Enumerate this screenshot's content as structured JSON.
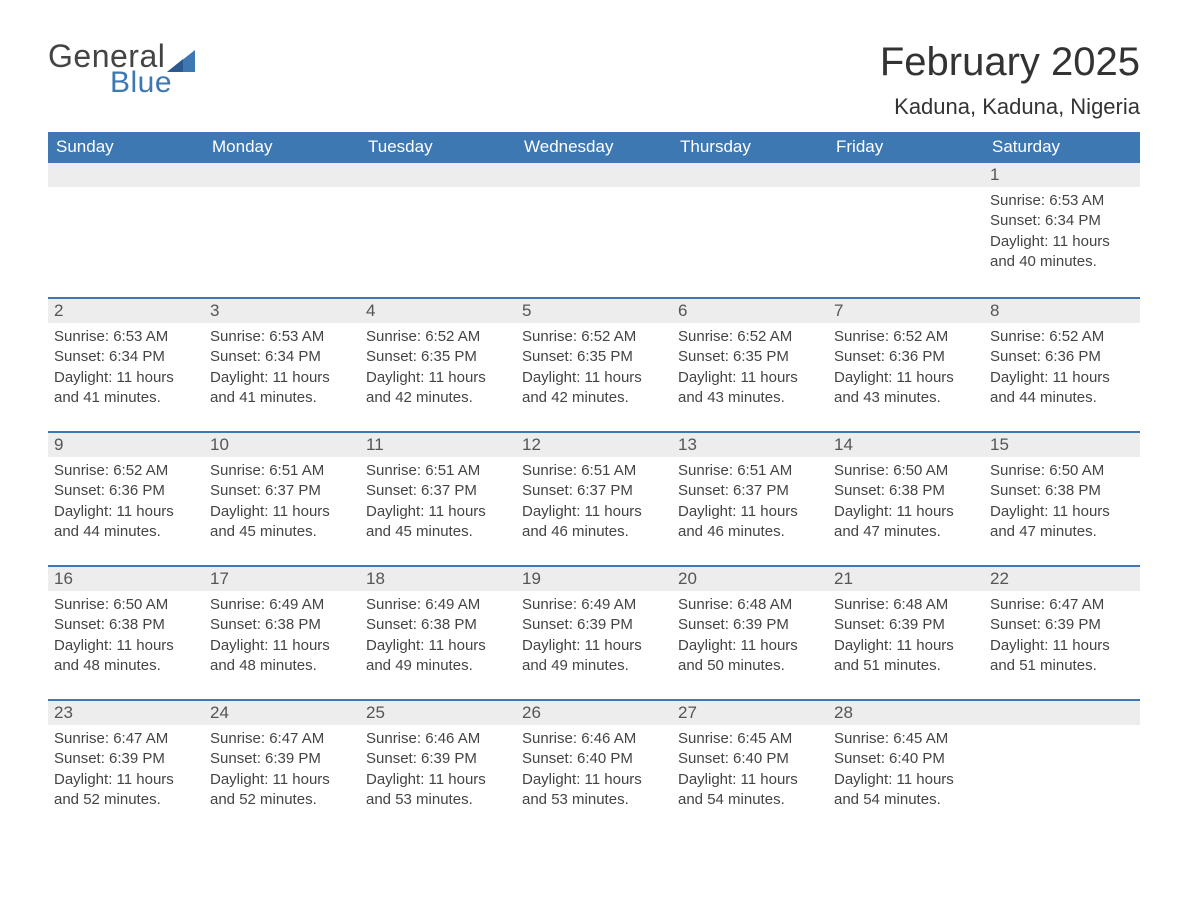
{
  "brand": {
    "word1": "General",
    "word2": "Blue",
    "icon_color": "#3e78b3"
  },
  "title": {
    "month_year": "February 2025",
    "location": "Kaduna, Kaduna, Nigeria"
  },
  "styling": {
    "header_bg": "#3e78b3",
    "header_fg": "#ffffff",
    "row_band_bg": "#ededed",
    "row_border_color": "#3e78b3",
    "page_bg": "#ffffff",
    "month_title_fontsize": 40,
    "location_fontsize": 22,
    "weekday_fontsize": 17,
    "daynum_fontsize": 17,
    "body_fontsize": 15
  },
  "weekdays": [
    "Sunday",
    "Monday",
    "Tuesday",
    "Wednesday",
    "Thursday",
    "Friday",
    "Saturday"
  ],
  "weeks": [
    [
      {
        "blank": true
      },
      {
        "blank": true
      },
      {
        "blank": true
      },
      {
        "blank": true
      },
      {
        "blank": true
      },
      {
        "blank": true
      },
      {
        "day": "1",
        "sunrise": "Sunrise: 6:53 AM",
        "sunset": "Sunset: 6:34 PM",
        "daylight": "Daylight: 11 hours and 40 minutes."
      }
    ],
    [
      {
        "day": "2",
        "sunrise": "Sunrise: 6:53 AM",
        "sunset": "Sunset: 6:34 PM",
        "daylight": "Daylight: 11 hours and 41 minutes."
      },
      {
        "day": "3",
        "sunrise": "Sunrise: 6:53 AM",
        "sunset": "Sunset: 6:34 PM",
        "daylight": "Daylight: 11 hours and 41 minutes."
      },
      {
        "day": "4",
        "sunrise": "Sunrise: 6:52 AM",
        "sunset": "Sunset: 6:35 PM",
        "daylight": "Daylight: 11 hours and 42 minutes."
      },
      {
        "day": "5",
        "sunrise": "Sunrise: 6:52 AM",
        "sunset": "Sunset: 6:35 PM",
        "daylight": "Daylight: 11 hours and 42 minutes."
      },
      {
        "day": "6",
        "sunrise": "Sunrise: 6:52 AM",
        "sunset": "Sunset: 6:35 PM",
        "daylight": "Daylight: 11 hours and 43 minutes."
      },
      {
        "day": "7",
        "sunrise": "Sunrise: 6:52 AM",
        "sunset": "Sunset: 6:36 PM",
        "daylight": "Daylight: 11 hours and 43 minutes."
      },
      {
        "day": "8",
        "sunrise": "Sunrise: 6:52 AM",
        "sunset": "Sunset: 6:36 PM",
        "daylight": "Daylight: 11 hours and 44 minutes."
      }
    ],
    [
      {
        "day": "9",
        "sunrise": "Sunrise: 6:52 AM",
        "sunset": "Sunset: 6:36 PM",
        "daylight": "Daylight: 11 hours and 44 minutes."
      },
      {
        "day": "10",
        "sunrise": "Sunrise: 6:51 AM",
        "sunset": "Sunset: 6:37 PM",
        "daylight": "Daylight: 11 hours and 45 minutes."
      },
      {
        "day": "11",
        "sunrise": "Sunrise: 6:51 AM",
        "sunset": "Sunset: 6:37 PM",
        "daylight": "Daylight: 11 hours and 45 minutes."
      },
      {
        "day": "12",
        "sunrise": "Sunrise: 6:51 AM",
        "sunset": "Sunset: 6:37 PM",
        "daylight": "Daylight: 11 hours and 46 minutes."
      },
      {
        "day": "13",
        "sunrise": "Sunrise: 6:51 AM",
        "sunset": "Sunset: 6:37 PM",
        "daylight": "Daylight: 11 hours and 46 minutes."
      },
      {
        "day": "14",
        "sunrise": "Sunrise: 6:50 AM",
        "sunset": "Sunset: 6:38 PM",
        "daylight": "Daylight: 11 hours and 47 minutes."
      },
      {
        "day": "15",
        "sunrise": "Sunrise: 6:50 AM",
        "sunset": "Sunset: 6:38 PM",
        "daylight": "Daylight: 11 hours and 47 minutes."
      }
    ],
    [
      {
        "day": "16",
        "sunrise": "Sunrise: 6:50 AM",
        "sunset": "Sunset: 6:38 PM",
        "daylight": "Daylight: 11 hours and 48 minutes."
      },
      {
        "day": "17",
        "sunrise": "Sunrise: 6:49 AM",
        "sunset": "Sunset: 6:38 PM",
        "daylight": "Daylight: 11 hours and 48 minutes."
      },
      {
        "day": "18",
        "sunrise": "Sunrise: 6:49 AM",
        "sunset": "Sunset: 6:38 PM",
        "daylight": "Daylight: 11 hours and 49 minutes."
      },
      {
        "day": "19",
        "sunrise": "Sunrise: 6:49 AM",
        "sunset": "Sunset: 6:39 PM",
        "daylight": "Daylight: 11 hours and 49 minutes."
      },
      {
        "day": "20",
        "sunrise": "Sunrise: 6:48 AM",
        "sunset": "Sunset: 6:39 PM",
        "daylight": "Daylight: 11 hours and 50 minutes."
      },
      {
        "day": "21",
        "sunrise": "Sunrise: 6:48 AM",
        "sunset": "Sunset: 6:39 PM",
        "daylight": "Daylight: 11 hours and 51 minutes."
      },
      {
        "day": "22",
        "sunrise": "Sunrise: 6:47 AM",
        "sunset": "Sunset: 6:39 PM",
        "daylight": "Daylight: 11 hours and 51 minutes."
      }
    ],
    [
      {
        "day": "23",
        "sunrise": "Sunrise: 6:47 AM",
        "sunset": "Sunset: 6:39 PM",
        "daylight": "Daylight: 11 hours and 52 minutes."
      },
      {
        "day": "24",
        "sunrise": "Sunrise: 6:47 AM",
        "sunset": "Sunset: 6:39 PM",
        "daylight": "Daylight: 11 hours and 52 minutes."
      },
      {
        "day": "25",
        "sunrise": "Sunrise: 6:46 AM",
        "sunset": "Sunset: 6:39 PM",
        "daylight": "Daylight: 11 hours and 53 minutes."
      },
      {
        "day": "26",
        "sunrise": "Sunrise: 6:46 AM",
        "sunset": "Sunset: 6:40 PM",
        "daylight": "Daylight: 11 hours and 53 minutes."
      },
      {
        "day": "27",
        "sunrise": "Sunrise: 6:45 AM",
        "sunset": "Sunset: 6:40 PM",
        "daylight": "Daylight: 11 hours and 54 minutes."
      },
      {
        "day": "28",
        "sunrise": "Sunrise: 6:45 AM",
        "sunset": "Sunset: 6:40 PM",
        "daylight": "Daylight: 11 hours and 54 minutes."
      },
      {
        "blank": true
      }
    ]
  ]
}
